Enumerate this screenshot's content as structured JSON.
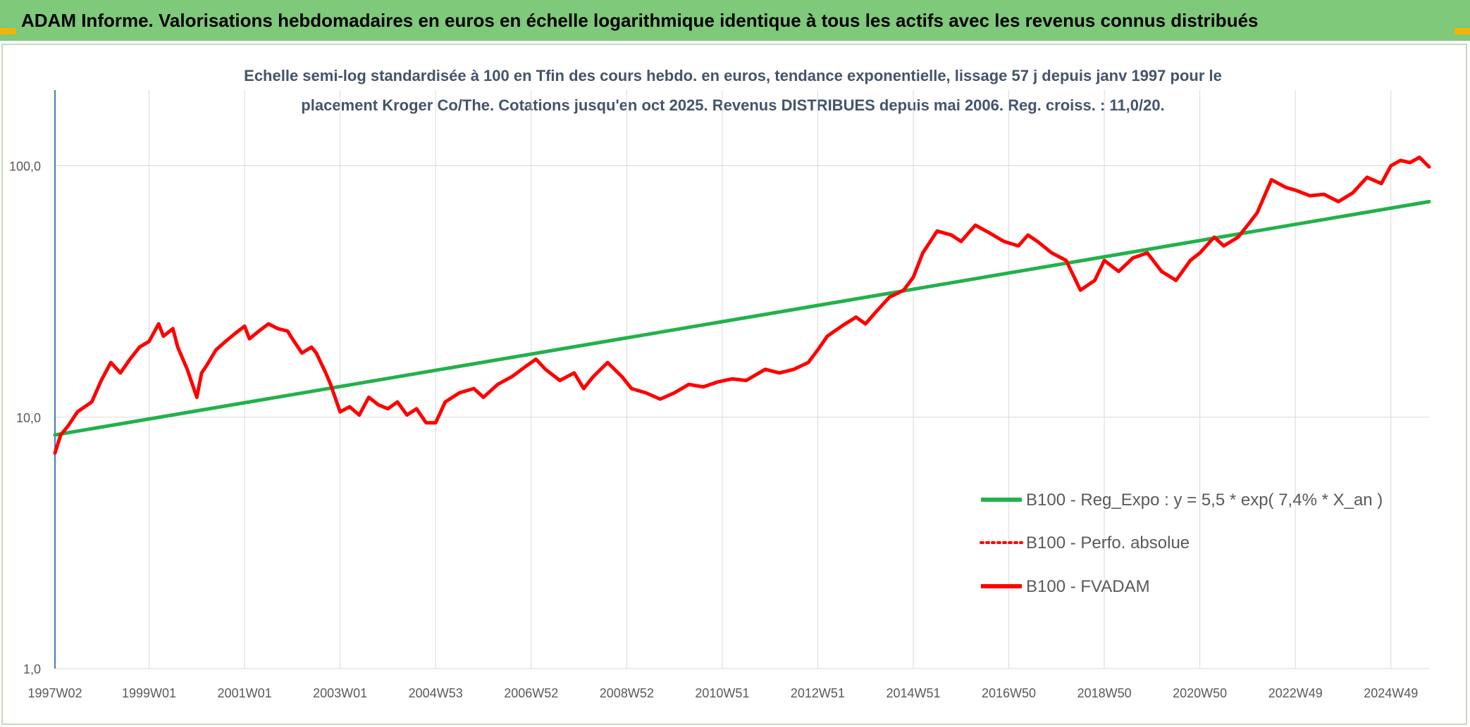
{
  "banner": {
    "title": "ADAM Informe. Valorisations hebdomadaires en euros en échelle logarithmique identique à tous les actifs avec les revenus connus distribués",
    "background": "#7fc97a"
  },
  "chart_data": {
    "type": "line",
    "subtitle_lines": [
      "Echelle semi-log standardisée à 100 en Tfin des cours hebdo. en euros, tendance exponentielle, lissage 57 j depuis janv 1997 pour le",
      "placement Kroger Co/The. Cotations jusqu'en oct 2025. Revenus DISTRIBUES depuis mai 2006. Reg. croiss. : 11,0/20."
    ],
    "y_scale": "log",
    "ylim": [
      1,
      200
    ],
    "y_ticks": [
      {
        "value": 1,
        "label": "1,0"
      },
      {
        "value": 10,
        "label": "10,0"
      },
      {
        "value": 100,
        "label": "100,0"
      }
    ],
    "xlim": [
      1997.03,
      2025.8
    ],
    "x_ticks": [
      {
        "value": 1997.03,
        "label": "1997W02"
      },
      {
        "value": 1999.0,
        "label": "1999W01"
      },
      {
        "value": 2001.0,
        "label": "2001W01"
      },
      {
        "value": 2003.0,
        "label": "2003W01"
      },
      {
        "value": 2005.0,
        "label": "2004W53"
      },
      {
        "value": 2007.0,
        "label": "2006W52"
      },
      {
        "value": 2009.0,
        "label": "2008W52"
      },
      {
        "value": 2011.0,
        "label": "2010W51"
      },
      {
        "value": 2013.0,
        "label": "2012W51"
      },
      {
        "value": 2015.0,
        "label": "2014W51"
      },
      {
        "value": 2017.0,
        "label": "2016W50"
      },
      {
        "value": 2019.0,
        "label": "2018W50"
      },
      {
        "value": 2021.0,
        "label": "2020W50"
      },
      {
        "value": 2023.0,
        "label": "2022W49"
      },
      {
        "value": 2025.0,
        "label": "2024W49"
      }
    ],
    "grid": true,
    "legend_position": "bottom-right",
    "series": [
      {
        "name": "B100 - Reg_Expo : y = 5,5 * exp( 7,4% *  X_an )",
        "color": "#22b14c",
        "style": "solid",
        "x": [
          1997.03,
          2025.8
        ],
        "y": [
          8.5,
          72
        ]
      },
      {
        "name": "B100 - Perfo. absolue",
        "color": "#ff0000",
        "style": "dotted",
        "x": [],
        "y": []
      },
      {
        "name": "B100 - FVADAM",
        "color": "#ff0000",
        "style": "solid",
        "x": [
          1997.03,
          1997.15,
          1997.3,
          1997.5,
          1997.8,
          1998.0,
          1998.2,
          1998.4,
          1998.6,
          1998.8,
          1999.0,
          1999.2,
          1999.3,
          1999.5,
          1999.6,
          1999.8,
          2000.0,
          2000.1,
          2000.2,
          2000.4,
          2000.6,
          2000.8,
          2001.0,
          2001.1,
          2001.3,
          2001.5,
          2001.7,
          2001.9,
          2002.0,
          2002.2,
          2002.4,
          2002.5,
          2002.7,
          2002.8,
          2003.0,
          2003.2,
          2003.4,
          2003.6,
          2003.8,
          2004.0,
          2004.2,
          2004.4,
          2004.6,
          2004.8,
          2005.0,
          2005.2,
          2005.5,
          2005.8,
          2006.0,
          2006.3,
          2006.6,
          2006.9,
          2007.1,
          2007.3,
          2007.6,
          2007.9,
          2008.1,
          2008.3,
          2008.6,
          2008.9,
          2009.1,
          2009.4,
          2009.7,
          2010.0,
          2010.3,
          2010.6,
          2010.9,
          2011.2,
          2011.5,
          2011.9,
          2012.2,
          2012.5,
          2012.8,
          2013.0,
          2013.2,
          2013.5,
          2013.8,
          2014.0,
          2014.2,
          2014.5,
          2014.8,
          2015.0,
          2015.2,
          2015.5,
          2015.8,
          2016.0,
          2016.3,
          2016.6,
          2016.9,
          2017.2,
          2017.4,
          2017.6,
          2017.9,
          2018.2,
          2018.5,
          2018.8,
          2019.0,
          2019.3,
          2019.6,
          2019.9,
          2020.2,
          2020.5,
          2020.8,
          2021.0,
          2021.3,
          2021.5,
          2021.8,
          2022.0,
          2022.2,
          2022.5,
          2022.8,
          2023.0,
          2023.3,
          2023.6,
          2023.9,
          2024.2,
          2024.5,
          2024.8,
          2025.0,
          2025.2,
          2025.4,
          2025.6,
          2025.8
        ],
        "y": [
          7.2,
          8.5,
          9.2,
          10.5,
          11.5,
          14.0,
          16.5,
          15.0,
          17.0,
          19.0,
          20.0,
          23.5,
          21.0,
          22.5,
          19.0,
          15.5,
          12.0,
          15.0,
          16.0,
          18.5,
          20.0,
          21.5,
          23.0,
          20.5,
          22.0,
          23.5,
          22.5,
          22.0,
          20.5,
          18.0,
          19.0,
          18.0,
          15.0,
          13.5,
          10.5,
          11.0,
          10.2,
          12.0,
          11.2,
          10.8,
          11.5,
          10.2,
          10.8,
          9.5,
          9.5,
          11.5,
          12.5,
          13.0,
          12.0,
          13.5,
          14.5,
          16.0,
          17.0,
          15.5,
          14.0,
          15.0,
          13.0,
          14.5,
          16.5,
          14.5,
          13.0,
          12.5,
          11.8,
          12.5,
          13.5,
          13.2,
          13.8,
          14.2,
          14.0,
          15.5,
          15.0,
          15.5,
          16.5,
          18.5,
          21.0,
          23.0,
          25.0,
          23.5,
          26.0,
          30.0,
          32.0,
          36.0,
          45.0,
          55.0,
          53.0,
          50.0,
          58.0,
          54.0,
          50.0,
          48.0,
          53.0,
          50.0,
          45.0,
          42.0,
          32.0,
          35.0,
          42.0,
          38.0,
          43.0,
          45.0,
          38.0,
          35.0,
          42.0,
          45.0,
          52.0,
          48.0,
          52.0,
          58.0,
          65.0,
          88.0,
          82.0,
          80.0,
          76.0,
          77.0,
          72.0,
          78.0,
          90.0,
          85.0,
          100.0,
          105.0,
          103.0,
          108.0,
          99.0
        ]
      }
    ]
  }
}
